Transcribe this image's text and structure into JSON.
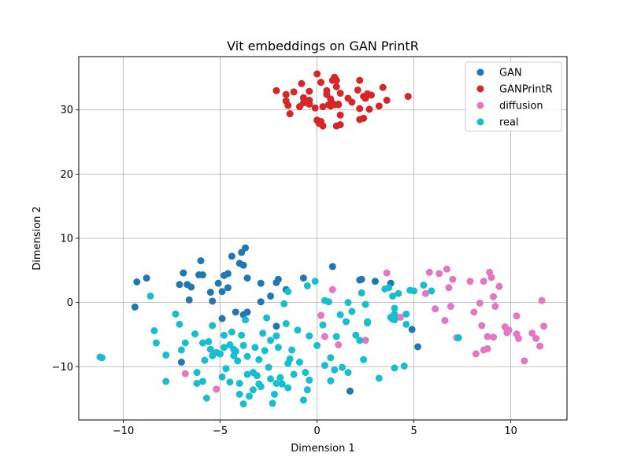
{
  "chart_data": {
    "type": "scatter",
    "title": "Vit embeddings on GAN PrintR",
    "xlabel": "Dimension 1",
    "ylabel": "Dimension 2",
    "xlim": [
      -12.3,
      12.9
    ],
    "ylim": [
      -18.3,
      38.3
    ],
    "xticks": [
      -10,
      -5,
      0,
      5,
      10
    ],
    "yticks": [
      -10,
      0,
      10,
      20,
      30
    ],
    "xtick_labels": [
      "−10",
      "−5",
      "0",
      "5",
      "10"
    ],
    "ytick_labels": [
      "−10",
      "0",
      "10",
      "20",
      "30"
    ],
    "grid": true,
    "legend_position": "top-right",
    "series": [
      {
        "name": "GAN",
        "color": "#1f77b4",
        "points": [
          [
            -9.3,
            3.2
          ],
          [
            -9.4,
            -0.7
          ],
          [
            -8.8,
            3.8
          ],
          [
            -7.1,
            2.8
          ],
          [
            -6.9,
            4.6
          ],
          [
            -6.7,
            2.8
          ],
          [
            -6.5,
            2.4
          ],
          [
            -6.6,
            0.4
          ],
          [
            -6.1,
            4.3
          ],
          [
            -6.0,
            6.5
          ],
          [
            -5.9,
            4.3
          ],
          [
            -5.5,
            1.6
          ],
          [
            -5.4,
            0.2
          ],
          [
            -5.1,
            3.0
          ],
          [
            -4.9,
            1.7
          ],
          [
            -4.8,
            4.2
          ],
          [
            -4.6,
            2.3
          ],
          [
            -4.6,
            4.5
          ],
          [
            -4.4,
            7.2
          ],
          [
            -4.0,
            6.1
          ],
          [
            -3.9,
            7.8
          ],
          [
            -3.7,
            8.5
          ],
          [
            -3.8,
            5.8
          ],
          [
            -3.6,
            3.8
          ],
          [
            -2.9,
            3.0
          ],
          [
            -2.9,
            0.1
          ],
          [
            -2.4,
            1.0
          ],
          [
            -2.1,
            3.1
          ],
          [
            -2.0,
            3.6
          ],
          [
            -1.6,
            2.0
          ],
          [
            -0.7,
            3.8
          ],
          [
            0.8,
            5.6
          ],
          [
            2.2,
            3.5
          ],
          [
            2.3,
            3.6
          ],
          [
            3.0,
            3.3
          ],
          [
            3.8,
            3.0
          ],
          [
            4.9,
            -4.2
          ],
          [
            5.2,
            -6.9
          ],
          [
            -4.9,
            -2.5
          ],
          [
            -4.2,
            -1.5
          ],
          [
            -3.8,
            -1.9
          ],
          [
            -3.6,
            -1.5
          ],
          [
            -2.1,
            -3.7
          ],
          [
            -7.0,
            -9.3
          ],
          [
            1.7,
            -13.8
          ]
        ]
      },
      {
        "name": "GANPrintR",
        "color": "#d62728",
        "points": [
          [
            -2.1,
            33.0
          ],
          [
            -1.6,
            32.4
          ],
          [
            -1.2,
            32.8
          ],
          [
            -1.6,
            31.4
          ],
          [
            -1.5,
            30.7
          ],
          [
            -1.4,
            29.4
          ],
          [
            -0.9,
            30.5
          ],
          [
            -0.7,
            31.1
          ],
          [
            -0.7,
            31.9
          ],
          [
            -0.8,
            34.1
          ],
          [
            -0.4,
            32.9
          ],
          [
            -0.4,
            31.5
          ],
          [
            -0.4,
            30.9
          ],
          [
            -0.1,
            30.3
          ],
          [
            0.0,
            28.4
          ],
          [
            0.1,
            27.9
          ],
          [
            0.0,
            35.6
          ],
          [
            0.2,
            34.3
          ],
          [
            0.2,
            28.2
          ],
          [
            0.3,
            27.5
          ],
          [
            0.3,
            30.5
          ],
          [
            0.5,
            32.4
          ],
          [
            0.5,
            33.0
          ],
          [
            0.6,
            30.8
          ],
          [
            0.7,
            30.6
          ],
          [
            0.7,
            31.7
          ],
          [
            0.8,
            34.6
          ],
          [
            0.9,
            35.1
          ],
          [
            0.8,
            31.0
          ],
          [
            0.9,
            30.8
          ],
          [
            1.0,
            34.6
          ],
          [
            1.0,
            33.6
          ],
          [
            1.0,
            27.5
          ],
          [
            1.1,
            30.9
          ],
          [
            1.1,
            30.8
          ],
          [
            1.2,
            27.7
          ],
          [
            1.2,
            29.2
          ],
          [
            1.2,
            32.6
          ],
          [
            1.6,
            31.8
          ],
          [
            1.8,
            31.2
          ],
          [
            2.1,
            33.1
          ],
          [
            2.2,
            34.6
          ],
          [
            2.2,
            30.2
          ],
          [
            2.2,
            28.5
          ],
          [
            2.4,
            32.1
          ],
          [
            2.4,
            28.7
          ],
          [
            2.5,
            31.8
          ],
          [
            2.6,
            32.5
          ],
          [
            2.7,
            30.1
          ],
          [
            2.8,
            32.3
          ],
          [
            3.2,
            30.6
          ],
          [
            3.4,
            33.5
          ],
          [
            3.6,
            31.5
          ],
          [
            4.7,
            32.1
          ]
        ]
      },
      {
        "name": "diffusion",
        "color": "#e377c2",
        "points": [
          [
            -6.8,
            -11.1
          ],
          [
            -5.2,
            -13.5
          ],
          [
            0.2,
            -2.0
          ],
          [
            0.4,
            -5.3
          ],
          [
            0.8,
            2.0
          ],
          [
            1.1,
            -6.6
          ],
          [
            2.5,
            -5.9
          ],
          [
            3.6,
            4.6
          ],
          [
            4.3,
            -2.3
          ],
          [
            5.6,
            1.4
          ],
          [
            5.8,
            4.7
          ],
          [
            6.1,
            -1.0
          ],
          [
            6.3,
            4.5
          ],
          [
            6.6,
            -2.8
          ],
          [
            6.7,
            5.2
          ],
          [
            6.8,
            2.3
          ],
          [
            6.9,
            -0.6
          ],
          [
            7.0,
            3.6
          ],
          [
            7.2,
            -5.5
          ],
          [
            7.9,
            3.3
          ],
          [
            8.1,
            -1.5
          ],
          [
            8.2,
            -8.0
          ],
          [
            8.5,
            -3.6
          ],
          [
            8.4,
            -0.1
          ],
          [
            8.6,
            3.3
          ],
          [
            8.6,
            -7.4
          ],
          [
            8.8,
            -5.3
          ],
          [
            8.8,
            -7.2
          ],
          [
            8.9,
            4.7
          ],
          [
            9.0,
            3.9
          ],
          [
            9.1,
            0.9
          ],
          [
            9.1,
            -5.4
          ],
          [
            9.2,
            -0.6
          ],
          [
            9.4,
            2.5
          ],
          [
            9.7,
            -3.8
          ],
          [
            9.8,
            -4.7
          ],
          [
            9.9,
            -4.3
          ],
          [
            10.3,
            -2.1
          ],
          [
            10.3,
            -4.9
          ],
          [
            10.4,
            -5.6
          ],
          [
            10.7,
            -9.1
          ],
          [
            11.1,
            -4.8
          ],
          [
            11.3,
            -5.6
          ],
          [
            11.5,
            -6.8
          ],
          [
            11.6,
            0.3
          ],
          [
            11.7,
            -3.7
          ]
        ]
      },
      {
        "name": "real",
        "color": "#17becf",
        "points": [
          [
            -11.2,
            -8.5
          ],
          [
            -11.1,
            -8.6
          ],
          [
            -8.6,
            1.0
          ],
          [
            -8.4,
            -4.4
          ],
          [
            -8.3,
            -6.3
          ],
          [
            -7.8,
            -8.2
          ],
          [
            -7.8,
            -12.3
          ],
          [
            -7.3,
            -1.8
          ],
          [
            -7.1,
            -3.4
          ],
          [
            -7.0,
            -7.4
          ],
          [
            -6.8,
            -6.3
          ],
          [
            -6.3,
            -4.9
          ],
          [
            -6.2,
            -10.9
          ],
          [
            -6.2,
            -12.6
          ],
          [
            -5.9,
            -6.3
          ],
          [
            -5.9,
            -12.3
          ],
          [
            -5.8,
            -9.0
          ],
          [
            -5.7,
            -14.9
          ],
          [
            -5.6,
            -6.1
          ],
          [
            -5.5,
            -7.3
          ],
          [
            -5.4,
            -3.6
          ],
          [
            -5.4,
            -8.3
          ],
          [
            -5.2,
            -7.8
          ],
          [
            -5.0,
            -8.0
          ],
          [
            -4.9,
            -11.6
          ],
          [
            -4.8,
            -5.1
          ],
          [
            -4.8,
            -7.0
          ],
          [
            -4.7,
            -10.3
          ],
          [
            -4.5,
            -6.6
          ],
          [
            -4.5,
            -12.4
          ],
          [
            -4.4,
            -4.6
          ],
          [
            -4.3,
            -7.3
          ],
          [
            -4.3,
            -8.3
          ],
          [
            -4.2,
            -7.6
          ],
          [
            -4.1,
            -9.1
          ],
          [
            -4.0,
            -14.3
          ],
          [
            -4.0,
            -12.6
          ],
          [
            -3.9,
            -5.1
          ],
          [
            -3.8,
            -6.7
          ],
          [
            -3.8,
            -15.8
          ],
          [
            -3.7,
            -2.7
          ],
          [
            -3.6,
            -8.4
          ],
          [
            -3.6,
            -11.2
          ],
          [
            -3.5,
            -14.6
          ],
          [
            -3.3,
            -10.9
          ],
          [
            -3.3,
            -13.6
          ],
          [
            -3.2,
            -7.0
          ],
          [
            -3.1,
            -11.4
          ],
          [
            -3.0,
            -8.9
          ],
          [
            -3.0,
            -12.7
          ],
          [
            -2.9,
            -13.1
          ],
          [
            -2.8,
            -4.8
          ],
          [
            -2.7,
            -7.5
          ],
          [
            -2.6,
            -2.4
          ],
          [
            -2.5,
            -10.1
          ],
          [
            -2.4,
            -5.9
          ],
          [
            -2.4,
            -11.9
          ],
          [
            -2.3,
            -15.7
          ],
          [
            -2.2,
            -14.3
          ],
          [
            -2.1,
            -12.6
          ],
          [
            -2.1,
            -5.2
          ],
          [
            -2.0,
            -7.0
          ],
          [
            -1.9,
            -11.7
          ],
          [
            -1.8,
            -12.7
          ],
          [
            -1.7,
            -0.2
          ],
          [
            -1.6,
            -3.3
          ],
          [
            -1.5,
            -9.5
          ],
          [
            -1.5,
            -13.3
          ],
          [
            -1.5,
            1.7
          ],
          [
            -1.4,
            -8.8
          ],
          [
            -1.3,
            -7.4
          ],
          [
            -1.2,
            -11.2
          ],
          [
            -1.0,
            -4.3
          ],
          [
            -0.9,
            -9.3
          ],
          [
            -0.7,
            -15.2
          ],
          [
            -0.6,
            -10.9
          ],
          [
            -0.5,
            -13.6
          ],
          [
            -0.5,
            2.6
          ],
          [
            -0.4,
            -5.2
          ],
          [
            -0.4,
            -12.1
          ],
          [
            -0.1,
            3.3
          ],
          [
            0.0,
            -6.7
          ],
          [
            0.3,
            -3.5
          ],
          [
            0.4,
            -9.8
          ],
          [
            0.4,
            0.3
          ],
          [
            0.6,
            0.1
          ],
          [
            0.7,
            -8.6
          ],
          [
            0.7,
            -12.2
          ],
          [
            0.9,
            -10.5
          ],
          [
            1.0,
            -5.3
          ],
          [
            1.2,
            -1.9
          ],
          [
            1.3,
            -10.1
          ],
          [
            1.5,
            -3.0
          ],
          [
            1.6,
            -10.9
          ],
          [
            1.6,
            0.0
          ],
          [
            1.8,
            -1.4
          ],
          [
            2.0,
            -5.1
          ],
          [
            2.2,
            -5.9
          ],
          [
            2.3,
            1.5
          ],
          [
            2.4,
            -8.9
          ],
          [
            2.5,
            -0.3
          ],
          [
            2.6,
            -3.2
          ],
          [
            2.6,
            -3.0
          ],
          [
            3.2,
            -11.8
          ],
          [
            3.5,
            2.1
          ],
          [
            3.7,
            2.3
          ],
          [
            3.8,
            -2.3
          ],
          [
            3.9,
            -2.6
          ],
          [
            3.9,
            1.0
          ],
          [
            4.0,
            -0.9
          ],
          [
            4.0,
            -1.8
          ],
          [
            4.0,
            -2.7
          ],
          [
            4.0,
            -10.2
          ],
          [
            4.2,
            1.4
          ],
          [
            4.5,
            -9.9
          ],
          [
            4.6,
            -1.8
          ],
          [
            4.6,
            -3.4
          ],
          [
            4.8,
            1.9
          ],
          [
            5.0,
            1.8
          ],
          [
            5.5,
            2.7
          ],
          [
            5.9,
            1.8
          ],
          [
            7.3,
            -5.5
          ]
        ]
      }
    ]
  }
}
